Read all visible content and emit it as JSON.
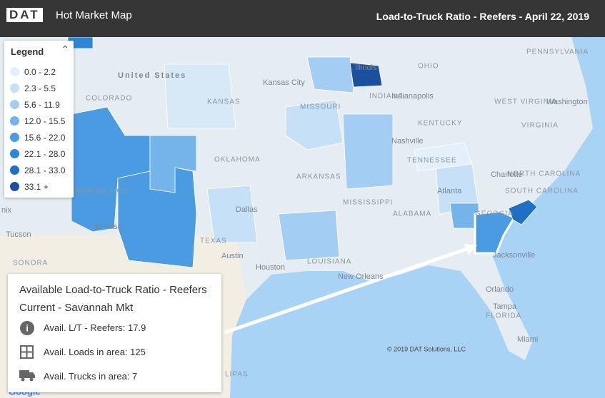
{
  "header": {
    "logo": "DAT",
    "app_title": "Hot Market Map",
    "map_title": "Load-to-Truck Ratio - Reefers - April 22, 2019"
  },
  "legend": {
    "title": "Legend",
    "items": [
      {
        "label": "0.0 - 2.2",
        "color": "#e3f0fc"
      },
      {
        "label": "2.3 - 5.5",
        "color": "#c6e0f7"
      },
      {
        "label": "5.6 - 11.9",
        "color": "#a3cdf2"
      },
      {
        "label": "12.0 - 15.5",
        "color": "#74b4ea"
      },
      {
        "label": "15.6 - 22.0",
        "color": "#4a9be2"
      },
      {
        "label": "22.1 - 28.0",
        "color": "#2e85d6"
      },
      {
        "label": "28.1 - 33.0",
        "color": "#1f6fc4"
      },
      {
        "label": "33.1 +",
        "color": "#1b4fa0"
      }
    ]
  },
  "map_labels": [
    "United States",
    "Kansas City",
    "KANSAS",
    "MISSOURI",
    "Illinois",
    "Indianapolis",
    "INDIANA",
    "OHIO",
    "PENNSYLVANIA",
    "WEST VIRGINIA",
    "VIRGINIA",
    "Washington",
    "KENTUCKY",
    "Nashville",
    "TENNESSEE",
    "NORTH CAROLINA",
    "Charlotte",
    "SOUTH CAROLINA",
    "Atlanta",
    "GEORGIA",
    "ALABAMA",
    "MISSISSIPPI",
    "ARKANSAS",
    "OKLAHOMA",
    "COLORADO",
    "NEW MEXICO",
    "El Paso",
    "Tucson",
    "SONORA",
    "Dallas",
    "TEXAS",
    "Austin",
    "Houston",
    "LOUISIANA",
    "New Orleans",
    "Jacksonville",
    "Orlando",
    "Tampa",
    "FLORIDA",
    "Miami",
    "LIPAS",
    "nix"
  ],
  "info_box": {
    "title": "Available Load-to-Truck Ratio - Reefers",
    "subtitle": "Current - Savannah Mkt",
    "lines": [
      "Avail. L/T - Reefers: 17.9",
      "Avail. Loads in area: 125",
      "Avail. Trucks in area: 7"
    ]
  },
  "copyright": "© 2019 DAT Solutions, LLC",
  "google": "Google"
}
